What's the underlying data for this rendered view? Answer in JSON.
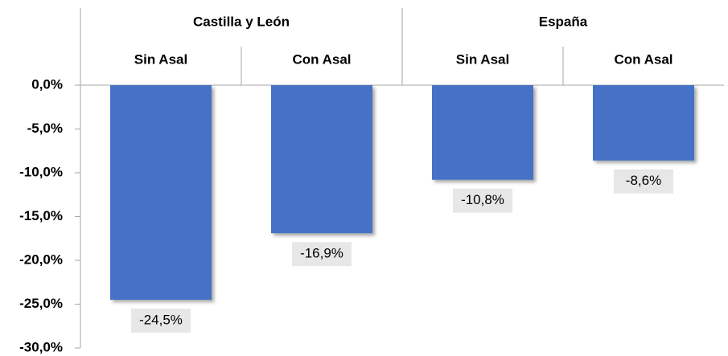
{
  "chart_data": {
    "type": "bar",
    "color": "#4472c4",
    "groups": [
      {
        "name": "Castilla y León",
        "categories": [
          "Sin Asal",
          "Con Asal"
        ],
        "values": [
          -24.5,
          -16.9
        ],
        "value_labels": [
          "-24,5%",
          "-16,9%"
        ]
      },
      {
        "name": "España",
        "categories": [
          "Sin Asal",
          "Con Asal"
        ],
        "values": [
          -10.8,
          -8.6
        ],
        "value_labels": [
          "-10,8%",
          "-8,6%"
        ]
      }
    ],
    "ylim": [
      -30,
      0
    ],
    "yticks": [
      {
        "value": 0,
        "label": "0,0%"
      },
      {
        "value": -5,
        "label": "-5,0%"
      },
      {
        "value": -10,
        "label": "-10,0%"
      },
      {
        "value": -15,
        "label": "-15,0%"
      },
      {
        "value": -20,
        "label": "-20,0%"
      },
      {
        "value": -25,
        "label": "-25,0%"
      },
      {
        "value": -30,
        "label": "-30,0%"
      }
    ]
  }
}
